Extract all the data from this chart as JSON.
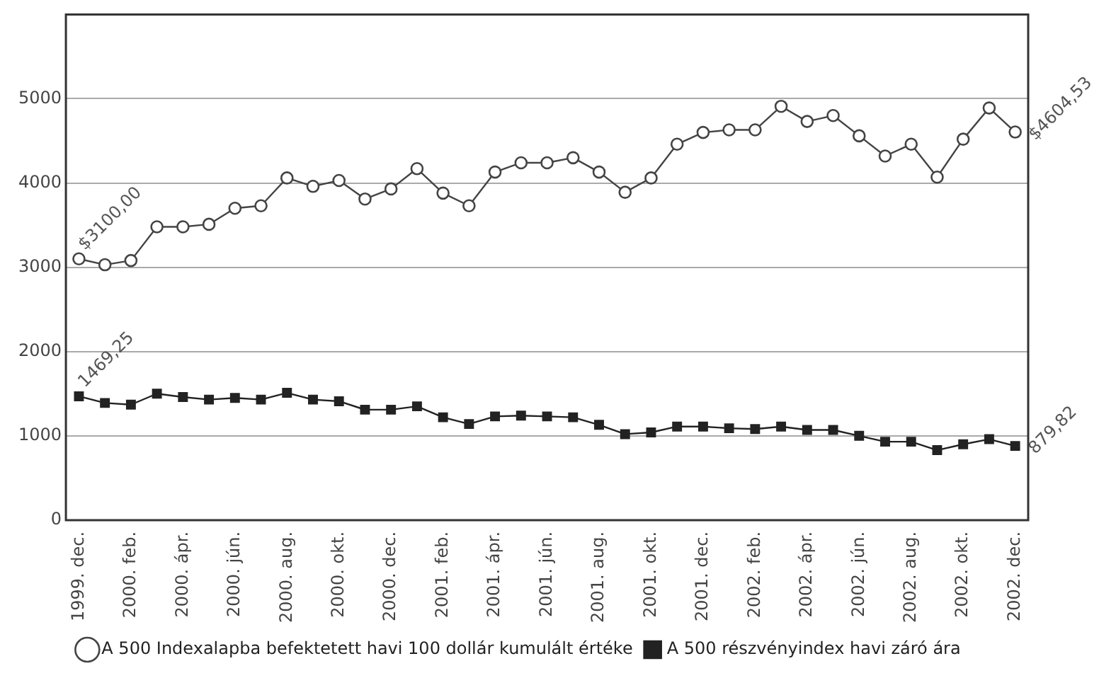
{
  "chart_data": {
    "type": "line",
    "categories": [
      "1999. dec.",
      null,
      "2000. feb.",
      null,
      "2000. ápr.",
      null,
      "2000. jún.",
      null,
      "2000. aug.",
      null,
      "2000. okt.",
      null,
      "2000. dec.",
      null,
      "2001. feb.",
      null,
      "2001. ápr.",
      null,
      "2001. jún.",
      null,
      "2001. aug.",
      null,
      "2001. okt.",
      null,
      "2001. dec.",
      null,
      "2002. feb.",
      null,
      "2002. ápr.",
      null,
      "2002. jún.",
      null,
      "2002. aug.",
      null,
      "2002. okt.",
      null,
      "2002. dec."
    ],
    "series": [
      {
        "name": "A 500 Indexalapba befektetett havi 100 dollár kumulált értéke",
        "color": "#444444",
        "marker": "circle",
        "values": [
          3100,
          3030,
          3080,
          3480,
          3480,
          3510,
          3700,
          3730,
          4060,
          3960,
          4030,
          3810,
          3930,
          4170,
          3880,
          3730,
          4130,
          4240,
          4240,
          4300,
          4130,
          3890,
          4060,
          4460,
          4600,
          4630,
          4630,
          4910,
          4730,
          4800,
          4560,
          4320,
          4460,
          4070,
          4520,
          4890,
          4604.53
        ]
      },
      {
        "name": "A 500 részvényindex havi záró ára",
        "color": "#222222",
        "marker": "square",
        "values": [
          1469.25,
          1390,
          1370,
          1500,
          1460,
          1430,
          1450,
          1430,
          1510,
          1430,
          1410,
          1310,
          1310,
          1350,
          1220,
          1140,
          1230,
          1240,
          1230,
          1220,
          1130,
          1020,
          1040,
          1110,
          1110,
          1090,
          1080,
          1110,
          1070,
          1070,
          1000,
          930,
          930,
          830,
          900,
          960,
          879.82
        ]
      }
    ],
    "ylim": [
      0,
      6000
    ],
    "yticks": [
      0,
      1000,
      2000,
      3000,
      4000,
      5000
    ],
    "grid": "y",
    "legend": "bottom",
    "line_style": "solid",
    "annotations": [
      {
        "text": "$3100,00",
        "x": "1999. dec.",
        "y": 3100
      },
      {
        "text": "1469,25",
        "x": "1999. dec.",
        "y": 1469.25
      },
      {
        "text": "$4604,53",
        "x": "2002. dec.",
        "y": 4604.53
      },
      {
        "text": "879,82",
        "x": "2002. dec.",
        "y": 879.82
      }
    ]
  }
}
